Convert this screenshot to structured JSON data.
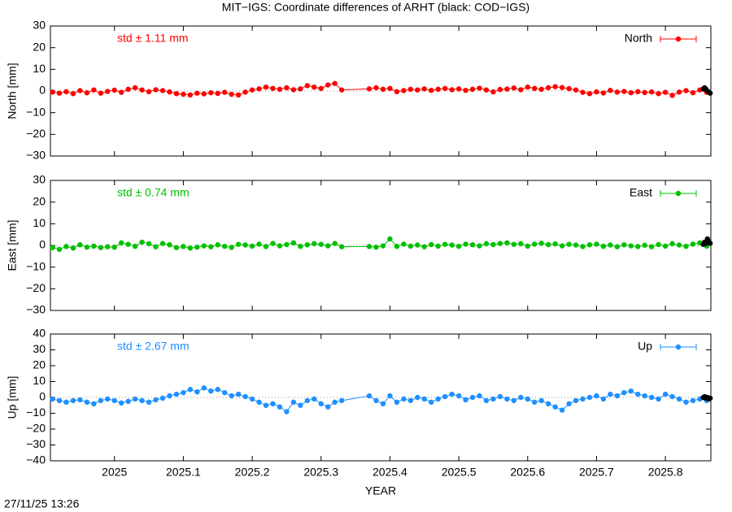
{
  "chart_data": [
    {
      "type": "line",
      "title": "MIT−IGS: Coordinate differences of ARHT (black: COD−IGS)",
      "y_label": "North [mm]",
      "annotation": "std ± 1.11 mm",
      "legend": "top-right",
      "zero_line": true,
      "xlim": [
        2024.907,
        2025.866
      ],
      "ylim": [
        -30,
        30
      ],
      "yticks": [
        {
          "value": -30,
          "label": "−30"
        },
        {
          "value": -20,
          "label": "−20"
        },
        {
          "value": -10,
          "label": "−10"
        },
        0,
        10,
        20,
        30
      ],
      "x": [
        2024.91,
        2024.92,
        2024.93,
        2024.94,
        2024.95,
        2024.96,
        2024.97,
        2024.98,
        2024.99,
        2025.0,
        2025.01,
        2025.02,
        2025.03,
        2025.04,
        2025.05,
        2025.06,
        2025.07,
        2025.08,
        2025.09,
        2025.1,
        2025.11,
        2025.12,
        2025.13,
        2025.14,
        2025.15,
        2025.16,
        2025.17,
        2025.18,
        2025.19,
        2025.2,
        2025.21,
        2025.22,
        2025.23,
        2025.24,
        2025.25,
        2025.26,
        2025.27,
        2025.28,
        2025.29,
        2025.3,
        2025.31,
        2025.32,
        2025.33,
        2025.37,
        2025.38,
        2025.39,
        2025.4,
        2025.41,
        2025.42,
        2025.43,
        2025.44,
        2025.45,
        2025.46,
        2025.47,
        2025.48,
        2025.49,
        2025.5,
        2025.51,
        2025.52,
        2025.53,
        2025.54,
        2025.55,
        2025.56,
        2025.57,
        2025.58,
        2025.59,
        2025.6,
        2025.61,
        2025.62,
        2025.63,
        2025.64,
        2025.65,
        2025.66,
        2025.67,
        2025.68,
        2025.69,
        2025.7,
        2025.71,
        2025.72,
        2025.73,
        2025.74,
        2025.75,
        2025.76,
        2025.77,
        2025.78,
        2025.79,
        2025.8,
        2025.81,
        2025.82,
        2025.83,
        2025.84,
        2025.85,
        2025.86
      ],
      "series": [
        {
          "name": "North",
          "color": "#ff0000",
          "values": [
            -0.5,
            -1,
            -0.3,
            -1.2,
            0.2,
            -0.8,
            0.5,
            -1,
            -0.2,
            0.4,
            -0.6,
            0.8,
            1.5,
            0.5,
            -0.3,
            0.6,
            0.2,
            -0.4,
            -1.2,
            -1.5,
            -1.8,
            -1,
            -1.3,
            -0.8,
            -1.1,
            -0.6,
            -1.5,
            -1.8,
            -0.5,
            0.5,
            1,
            1.8,
            1.2,
            0.8,
            1.5,
            0.6,
            1,
            2.5,
            1.8,
            1.2,
            2.8,
            3.5,
            0.5,
            1,
            1.5,
            0.8,
            1.2,
            -0.3,
            0.2,
            0.8,
            0.5,
            1,
            0.3,
            0.8,
            1.2,
            0.6,
            1,
            0.3,
            0.8,
            1.3,
            0.5,
            -0.4,
            0.7,
            0.9,
            1.4,
            0.6,
            1.8,
            1.2,
            0.8,
            1.5,
            2,
            1.6,
            1.1,
            0.5,
            -0.6,
            -1.2,
            -0.4,
            -0.9,
            0.3,
            -0.5,
            -0.2,
            -0.8,
            -0.3,
            -0.7,
            -0.4,
            -1.2,
            -0.6,
            -2,
            -0.5,
            0.2,
            -0.8,
            0.5,
            -0.6
          ]
        }
      ],
      "comparison": {
        "color": "#000000",
        "x": [
          2025.855,
          2025.857,
          2025.859,
          2025.861,
          2025.863,
          2025.865
        ],
        "values": [
          1,
          1.5,
          0.8,
          0,
          -0.5,
          -1
        ]
      }
    },
    {
      "type": "line",
      "y_label": "East [mm]",
      "annotation": "std ± 0.74 mm",
      "legend": "top-right",
      "zero_line": true,
      "xlim": [
        2024.907,
        2025.866
      ],
      "ylim": [
        -30,
        30
      ],
      "yticks": [
        {
          "value": -30,
          "label": "−30"
        },
        {
          "value": -20,
          "label": "−20"
        },
        {
          "value": -10,
          "label": "−10"
        },
        0,
        10,
        20,
        30
      ],
      "x": [
        2024.91,
        2024.92,
        2024.93,
        2024.94,
        2024.95,
        2024.96,
        2024.97,
        2024.98,
        2024.99,
        2025.0,
        2025.01,
        2025.02,
        2025.03,
        2025.04,
        2025.05,
        2025.06,
        2025.07,
        2025.08,
        2025.09,
        2025.1,
        2025.11,
        2025.12,
        2025.13,
        2025.14,
        2025.15,
        2025.16,
        2025.17,
        2025.18,
        2025.19,
        2025.2,
        2025.21,
        2025.22,
        2025.23,
        2025.24,
        2025.25,
        2025.26,
        2025.27,
        2025.28,
        2025.29,
        2025.3,
        2025.31,
        2025.32,
        2025.33,
        2025.37,
        2025.38,
        2025.39,
        2025.4,
        2025.41,
        2025.42,
        2025.43,
        2025.44,
        2025.45,
        2025.46,
        2025.47,
        2025.48,
        2025.49,
        2025.5,
        2025.51,
        2025.52,
        2025.53,
        2025.54,
        2025.55,
        2025.56,
        2025.57,
        2025.58,
        2025.59,
        2025.6,
        2025.61,
        2025.62,
        2025.63,
        2025.64,
        2025.65,
        2025.66,
        2025.67,
        2025.68,
        2025.69,
        2025.7,
        2025.71,
        2025.72,
        2025.73,
        2025.74,
        2025.75,
        2025.76,
        2025.77,
        2025.78,
        2025.79,
        2025.8,
        2025.81,
        2025.82,
        2025.83,
        2025.84,
        2025.85,
        2025.86
      ],
      "series": [
        {
          "name": "East",
          "color": "#00c000",
          "values": [
            -1,
            -1.8,
            -0.5,
            -1.2,
            0.3,
            -0.8,
            -0.3,
            -1,
            -0.6,
            -0.8,
            1.2,
            0.5,
            -0.4,
            1.5,
            0.8,
            -0.6,
            0.9,
            0.3,
            -1,
            -0.5,
            -1.2,
            -0.8,
            -0.2,
            -0.6,
            0.3,
            -0.4,
            -0.9,
            0.5,
            0.2,
            -0.3,
            0.6,
            -0.5,
            0.9,
            -0.2,
            0.4,
            1.2,
            -0.4,
            0.3,
            0.8,
            0.5,
            -0.2,
            0.9,
            -0.6,
            -0.5,
            -0.8,
            -0.2,
            3,
            -0.4,
            0.6,
            -0.3,
            0.2,
            -0.6,
            0.4,
            -0.3,
            0.5,
            0.2,
            -0.4,
            0.6,
            0.3,
            -0.2,
            0.8,
            0.4,
            0.9,
            1.2,
            0.5,
            0.8,
            -0.3,
            0.6,
            1,
            0.4,
            0.7,
            -0.2,
            0.5,
            0.2,
            -0.5,
            0.3,
            0.6,
            -0.4,
            0.2,
            -0.6,
            0.3,
            -0.2,
            -0.5,
            0.1,
            -0.6,
            0.4,
            -0.3,
            0.8,
            0.2,
            -0.4,
            0.6,
            1.2,
            -0.3
          ]
        }
      ],
      "comparison": {
        "color": "#000000",
        "x": [
          2025.855,
          2025.857,
          2025.859,
          2025.861,
          2025.863,
          2025.865
        ],
        "values": [
          0.5,
          1.5,
          1,
          3,
          1.8,
          1
        ]
      }
    },
    {
      "type": "line",
      "y_label": "Up [mm]",
      "x_label": "YEAR",
      "annotation": "std ± 2.67 mm",
      "legend": "top-right",
      "zero_line": true,
      "xlim": [
        2024.907,
        2025.866
      ],
      "ylim": [
        -40,
        40
      ],
      "xticks": [
        2025,
        2025.1,
        2025.2,
        2025.3,
        2025.4,
        2025.5,
        2025.6,
        2025.7,
        2025.8
      ],
      "yticks": [
        {
          "value": -40,
          "label": "−40"
        },
        {
          "value": -30,
          "label": "−30"
        },
        {
          "value": -20,
          "label": "−20"
        },
        {
          "value": -10,
          "label": "−10"
        },
        0,
        10,
        20,
        30,
        40
      ],
      "x": [
        2024.91,
        2024.92,
        2024.93,
        2024.94,
        2024.95,
        2024.96,
        2024.97,
        2024.98,
        2024.99,
        2025.0,
        2025.01,
        2025.02,
        2025.03,
        2025.04,
        2025.05,
        2025.06,
        2025.07,
        2025.08,
        2025.09,
        2025.1,
        2025.11,
        2025.12,
        2025.13,
        2025.14,
        2025.15,
        2025.16,
        2025.17,
        2025.18,
        2025.19,
        2025.2,
        2025.21,
        2025.22,
        2025.23,
        2025.24,
        2025.25,
        2025.26,
        2025.27,
        2025.28,
        2025.29,
        2025.3,
        2025.31,
        2025.32,
        2025.33,
        2025.37,
        2025.38,
        2025.39,
        2025.4,
        2025.41,
        2025.42,
        2025.43,
        2025.44,
        2025.45,
        2025.46,
        2025.47,
        2025.48,
        2025.49,
        2025.5,
        2025.51,
        2025.52,
        2025.53,
        2025.54,
        2025.55,
        2025.56,
        2025.57,
        2025.58,
        2025.59,
        2025.6,
        2025.61,
        2025.62,
        2025.63,
        2025.64,
        2025.65,
        2025.66,
        2025.67,
        2025.68,
        2025.69,
        2025.7,
        2025.71,
        2025.72,
        2025.73,
        2025.74,
        2025.75,
        2025.76,
        2025.77,
        2025.78,
        2025.79,
        2025.8,
        2025.81,
        2025.82,
        2025.83,
        2025.84,
        2025.85,
        2025.86
      ],
      "series": [
        {
          "name": "Up",
          "color": "#1e90ff",
          "values": [
            -1,
            -2,
            -3,
            -2,
            -1.5,
            -3,
            -4,
            -2,
            -1,
            -2,
            -3.5,
            -2.5,
            -1,
            -2,
            -3,
            -1.5,
            -0.5,
            1,
            2,
            3,
            5,
            3.5,
            6,
            4,
            5,
            3,
            1,
            2,
            0.5,
            -1,
            -3,
            -5,
            -4,
            -6,
            -9,
            -3,
            -5,
            -2,
            -1,
            -4,
            -6,
            -3,
            -2,
            1,
            -2,
            -4,
            1,
            -3,
            -1,
            -2,
            0,
            -1,
            -3,
            -1,
            0.5,
            2,
            1,
            -1.5,
            0,
            1,
            -2,
            -1,
            0.5,
            -1,
            -2,
            0,
            -1,
            -3,
            -2,
            -4,
            -6,
            -8,
            -4,
            -2,
            -1,
            0,
            1,
            -1,
            2,
            1,
            3,
            4,
            2,
            1,
            0,
            -1,
            2,
            0.5,
            -1,
            -3,
            -2,
            -1,
            -2
          ]
        }
      ],
      "comparison": {
        "color": "#000000",
        "x": [
          2025.855,
          2025.857,
          2025.859,
          2025.861,
          2025.863,
          2025.865
        ],
        "values": [
          0,
          0.5,
          -0.5,
          0,
          -1,
          -0.5
        ]
      }
    }
  ],
  "footer": "27/11/25 13:26"
}
